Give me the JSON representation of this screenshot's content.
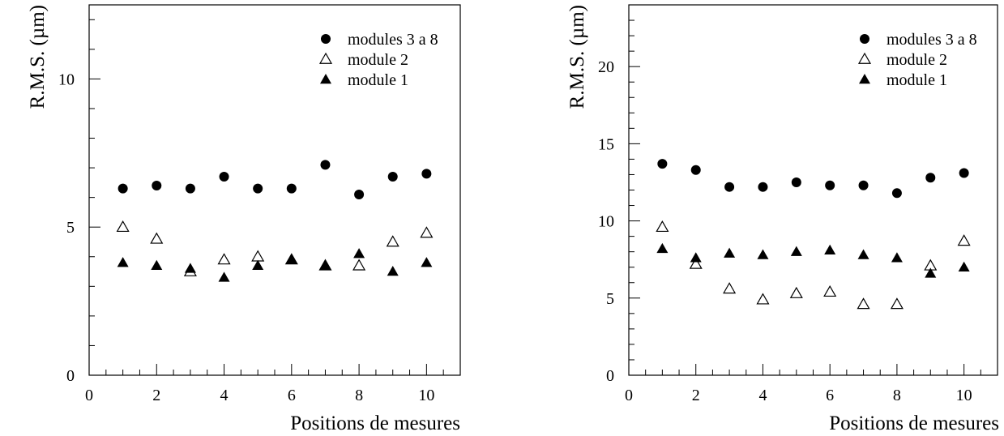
{
  "chart_data": [
    {
      "type": "scatter",
      "xlabel": "Positions de mesures",
      "ylabel": "R.M.S. (µm)",
      "xlim": [
        0,
        11
      ],
      "ylim": [
        0,
        12.5
      ],
      "xticks": [
        0,
        2,
        4,
        6,
        8,
        10
      ],
      "yticks": [
        0,
        5,
        10
      ],
      "grid": false,
      "legend_position": "top-right",
      "x": [
        1,
        2,
        3,
        4,
        5,
        6,
        7,
        8,
        9,
        10
      ],
      "series": [
        {
          "name": "modules 3 a 8",
          "marker": "filled-circle",
          "values": [
            6.3,
            6.4,
            6.3,
            6.7,
            6.3,
            6.3,
            7.1,
            6.1,
            6.7,
            6.8
          ]
        },
        {
          "name": "module 2",
          "marker": "open-triangle",
          "values": [
            5.0,
            4.6,
            3.5,
            3.9,
            4.0,
            3.9,
            3.7,
            3.7,
            4.5,
            4.8
          ]
        },
        {
          "name": "module 1",
          "marker": "filled-triangle",
          "values": [
            3.8,
            3.7,
            3.6,
            3.3,
            3.7,
            3.9,
            3.7,
            4.1,
            3.5,
            3.8
          ]
        }
      ]
    },
    {
      "type": "scatter",
      "xlabel": "Positions de mesures",
      "ylabel": "R.M.S. (µm)",
      "xlim": [
        0,
        11
      ],
      "ylim": [
        0,
        24
      ],
      "xticks": [
        0,
        2,
        4,
        6,
        8,
        10
      ],
      "yticks": [
        0,
        5,
        10,
        15,
        20
      ],
      "grid": false,
      "legend_position": "top-right",
      "x": [
        1,
        2,
        3,
        4,
        5,
        6,
        7,
        8,
        9,
        10
      ],
      "series": [
        {
          "name": "modules 3 a 8",
          "marker": "filled-circle",
          "values": [
            13.7,
            13.3,
            12.2,
            12.2,
            12.5,
            12.3,
            12.3,
            11.8,
            12.8,
            13.1
          ]
        },
        {
          "name": "module 2",
          "marker": "open-triangle",
          "values": [
            9.6,
            7.2,
            5.6,
            4.9,
            5.3,
            5.4,
            4.6,
            4.6,
            7.1,
            8.7
          ]
        },
        {
          "name": "module 1",
          "marker": "filled-triangle",
          "values": [
            8.2,
            7.6,
            7.9,
            7.8,
            8.0,
            8.1,
            7.8,
            7.6,
            6.6,
            7.0
          ]
        }
      ]
    }
  ]
}
